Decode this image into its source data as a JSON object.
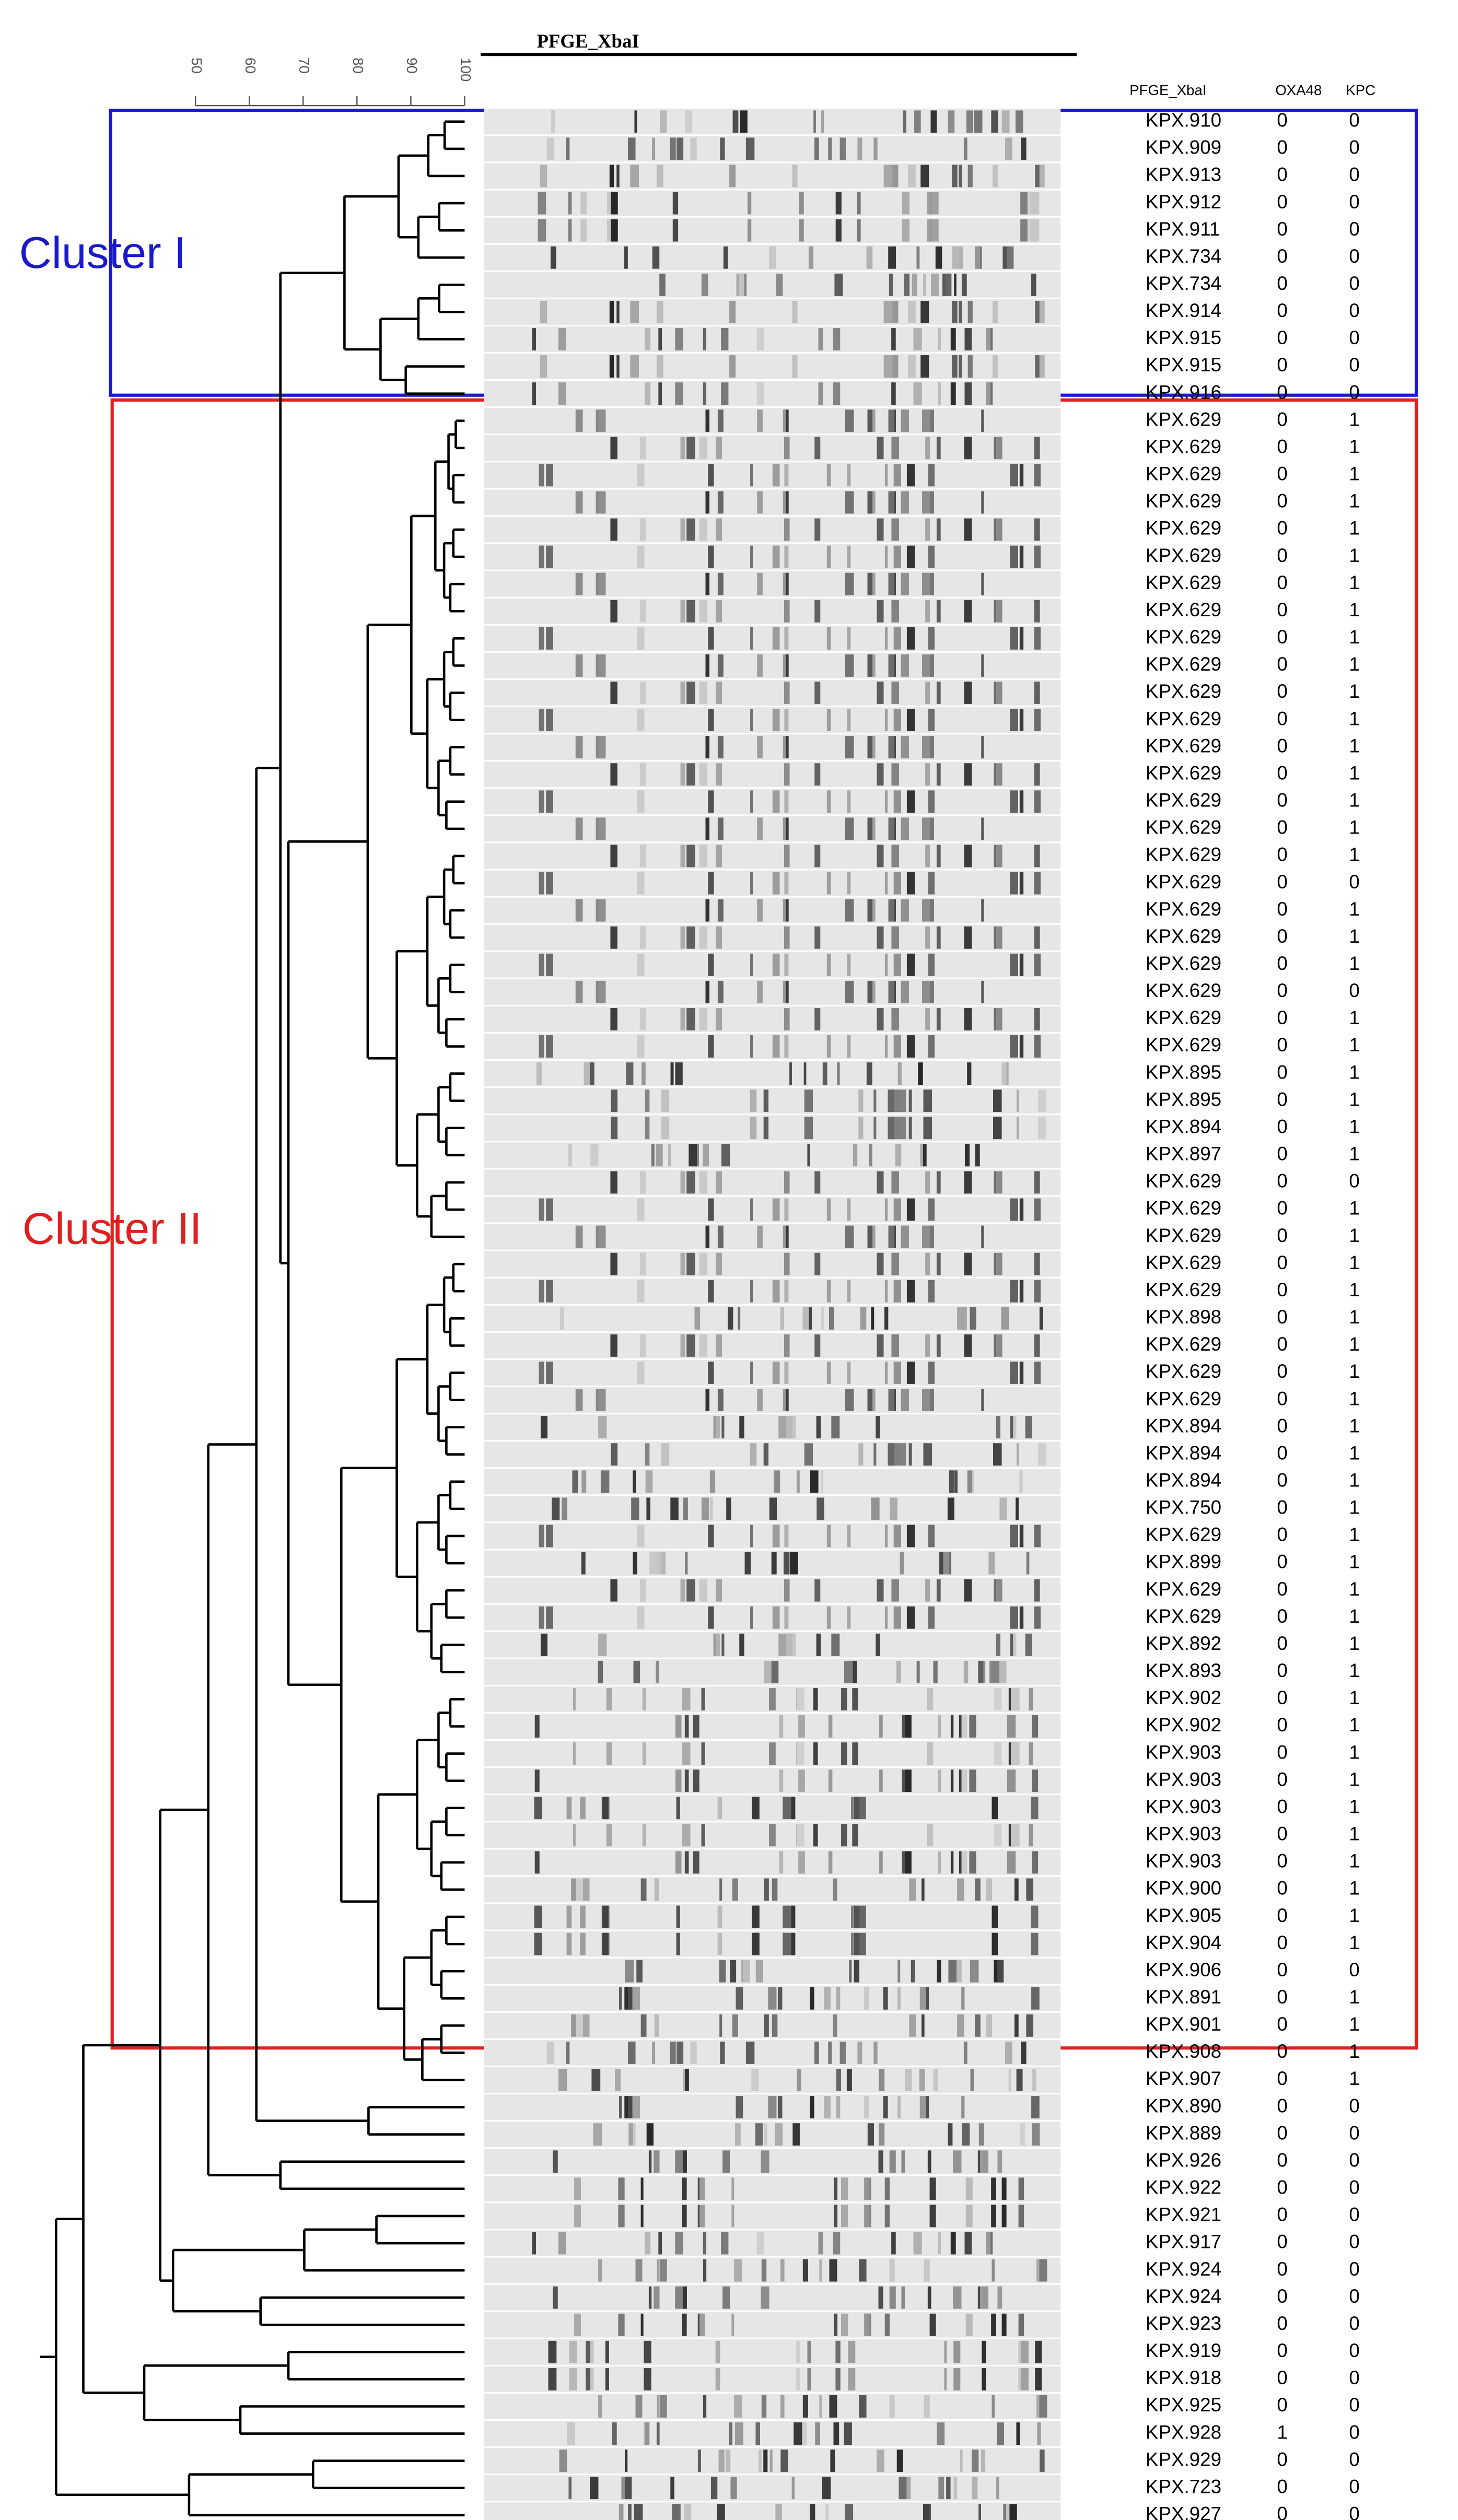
{
  "header": {
    "title": "PFGE_XbaI"
  },
  "scale_ticks": [
    50,
    60,
    70,
    80,
    90,
    100
  ],
  "columns": [
    "PFGE_XbaI",
    "OXA48",
    "KPC"
  ],
  "clusters": [
    {
      "label": "Cluster I"
    },
    {
      "label": "Cluster II"
    }
  ],
  "rows": [
    [
      "KPX.910",
      0,
      0
    ],
    [
      "KPX.909",
      0,
      0
    ],
    [
      "KPX.913",
      0,
      0
    ],
    [
      "KPX.912",
      0,
      0
    ],
    [
      "KPX.911",
      0,
      0
    ],
    [
      "KPX.734",
      0,
      0
    ],
    [
      "KPX.734",
      0,
      0
    ],
    [
      "KPX.914",
      0,
      0
    ],
    [
      "KPX.915",
      0,
      0
    ],
    [
      "KPX.915",
      0,
      0
    ],
    [
      "KPX.916",
      0,
      0
    ],
    [
      "KPX.629",
      0,
      1
    ],
    [
      "KPX.629",
      0,
      1
    ],
    [
      "KPX.629",
      0,
      1
    ],
    [
      "KPX.629",
      0,
      1
    ],
    [
      "KPX.629",
      0,
      1
    ],
    [
      "KPX.629",
      0,
      1
    ],
    [
      "KPX.629",
      0,
      1
    ],
    [
      "KPX.629",
      0,
      1
    ],
    [
      "KPX.629",
      0,
      1
    ],
    [
      "KPX.629",
      0,
      1
    ],
    [
      "KPX.629",
      0,
      1
    ],
    [
      "KPX.629",
      0,
      1
    ],
    [
      "KPX.629",
      0,
      1
    ],
    [
      "KPX.629",
      0,
      1
    ],
    [
      "KPX.629",
      0,
      1
    ],
    [
      "KPX.629",
      0,
      1
    ],
    [
      "KPX.629",
      0,
      1
    ],
    [
      "KPX.629",
      0,
      0
    ],
    [
      "KPX.629",
      0,
      1
    ],
    [
      "KPX.629",
      0,
      1
    ],
    [
      "KPX.629",
      0,
      1
    ],
    [
      "KPX.629",
      0,
      0
    ],
    [
      "KPX.629",
      0,
      1
    ],
    [
      "KPX.629",
      0,
      1
    ],
    [
      "KPX.895",
      0,
      1
    ],
    [
      "KPX.895",
      0,
      1
    ],
    [
      "KPX.894",
      0,
      1
    ],
    [
      "KPX.897",
      0,
      1
    ],
    [
      "KPX.629",
      0,
      0
    ],
    [
      "KPX.629",
      0,
      1
    ],
    [
      "KPX.629",
      0,
      1
    ],
    [
      "KPX.629",
      0,
      1
    ],
    [
      "KPX.629",
      0,
      1
    ],
    [
      "KPX.898",
      0,
      1
    ],
    [
      "KPX.629",
      0,
      1
    ],
    [
      "KPX.629",
      0,
      1
    ],
    [
      "KPX.629",
      0,
      1
    ],
    [
      "KPX.894",
      0,
      1
    ],
    [
      "KPX.894",
      0,
      1
    ],
    [
      "KPX.894",
      0,
      1
    ],
    [
      "KPX.750",
      0,
      1
    ],
    [
      "KPX.629",
      0,
      1
    ],
    [
      "KPX.899",
      0,
      1
    ],
    [
      "KPX.629",
      0,
      1
    ],
    [
      "KPX.629",
      0,
      1
    ],
    [
      "KPX.892",
      0,
      1
    ],
    [
      "KPX.893",
      0,
      1
    ],
    [
      "KPX.902",
      0,
      1
    ],
    [
      "KPX.902",
      0,
      1
    ],
    [
      "KPX.903",
      0,
      1
    ],
    [
      "KPX.903",
      0,
      1
    ],
    [
      "KPX.903",
      0,
      1
    ],
    [
      "KPX.903",
      0,
      1
    ],
    [
      "KPX.903",
      0,
      1
    ],
    [
      "KPX.900",
      0,
      1
    ],
    [
      "KPX.905",
      0,
      1
    ],
    [
      "KPX.904",
      0,
      1
    ],
    [
      "KPX.906",
      0,
      0
    ],
    [
      "KPX.891",
      0,
      1
    ],
    [
      "KPX.901",
      0,
      1
    ],
    [
      "KPX.908",
      0,
      1
    ],
    [
      "KPX.907",
      0,
      1
    ],
    [
      "KPX.890",
      0,
      0
    ],
    [
      "KPX.889",
      0,
      0
    ],
    [
      "KPX.926",
      0,
      0
    ],
    [
      "KPX.922",
      0,
      0
    ],
    [
      "KPX.921",
      0,
      0
    ],
    [
      "KPX.917",
      0,
      0
    ],
    [
      "KPX.924",
      0,
      0
    ],
    [
      "KPX.924",
      0,
      0
    ],
    [
      "KPX.923",
      0,
      0
    ],
    [
      "KPX.919",
      0,
      0
    ],
    [
      "KPX.918",
      0,
      0
    ],
    [
      "KPX.925",
      0,
      0
    ],
    [
      "KPX.928",
      1,
      0
    ],
    [
      "KPX.929",
      0,
      0
    ],
    [
      "KPX.723",
      0,
      0
    ],
    [
      "KPX.927",
      0,
      0
    ]
  ]
}
